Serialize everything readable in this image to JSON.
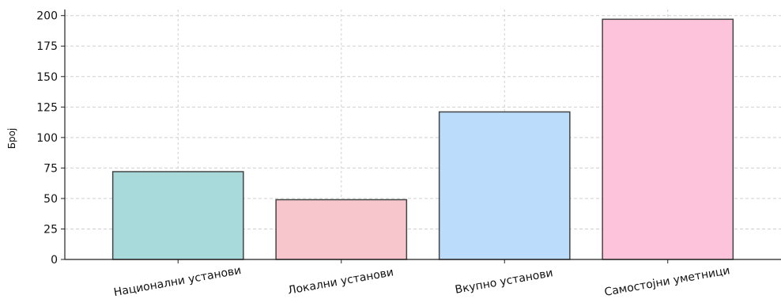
{
  "chart_data": {
    "type": "bar",
    "title": "",
    "xlabel": "",
    "ylabel": "Број",
    "categories": [
      "Национални установи",
      "Локални установи",
      "Вкупно установи",
      "Самостојни уметници"
    ],
    "values": [
      72,
      49,
      121,
      197
    ],
    "colors": [
      "#a8dadb",
      "#f7c6cc",
      "#bcdcfb",
      "#fdc3da"
    ],
    "ylim": [
      0,
      205
    ],
    "yticks": [
      0,
      25,
      50,
      75,
      100,
      125,
      150,
      175,
      200
    ],
    "grid": true,
    "legend": "none"
  }
}
